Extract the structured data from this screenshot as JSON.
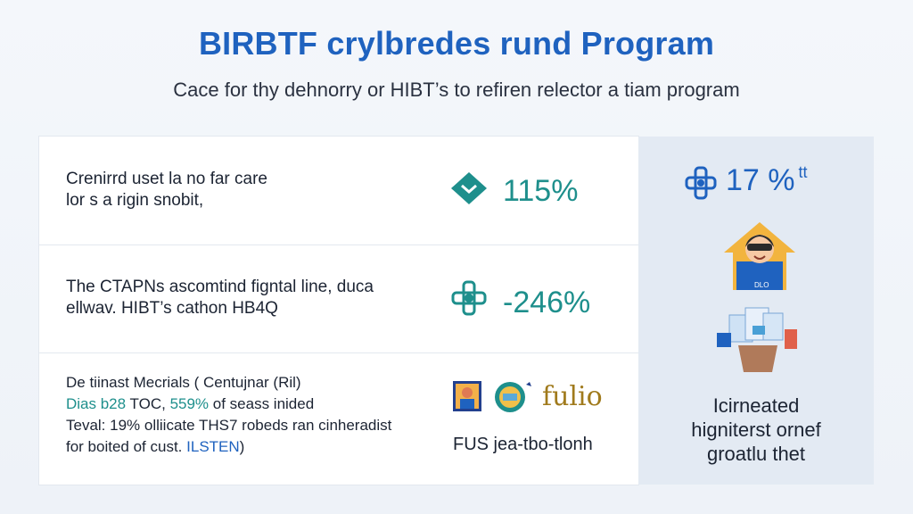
{
  "header": {
    "title": "BIRBTF crylbredes rund Program",
    "subtitle": "Cace for thy dehnorry or HIBT’s to refiren relector a tiam program"
  },
  "rows": [
    {
      "text_line1": "Crenirrd uset la no far care",
      "text_line2": "lor s a rigin snobit,",
      "icon": "teal-diamond-icon",
      "value": "115%"
    },
    {
      "text_line1": "The CTAPNs ascomtind figntal line, duca",
      "text_line2": "ellwav. HIBT’s cathon HB4Q",
      "icon": "teal-puzzle-icon",
      "value": "-246%"
    }
  ],
  "details": {
    "line1": "De tiinast Mecrials ( Centujnar (Ril)",
    "line2_a": "Dias b28",
    "line2_b": " TOC, ",
    "line2_c": "559%",
    "line2_d": " of seass inided",
    "line3": "Teval: 19% olliicate THS7 robeds ran cinheradist",
    "line4_a": "for boited of cust. ",
    "line4_b": "ILSTEN",
    "line4_c": ")",
    "caption": "FUS jea-tbo-tlonh",
    "logo_text": "fulio"
  },
  "panel": {
    "value": "17 %",
    "value_suffix": "tt",
    "caption_line1": "Icirneated",
    "caption_line2": "higniterst ornef",
    "caption_line3": "groatlu thet",
    "badge_text": "DLO"
  },
  "colors": {
    "title": "#1f62bf",
    "teal": "#1e8f8c",
    "panel_bg": "#e3eaf3"
  }
}
